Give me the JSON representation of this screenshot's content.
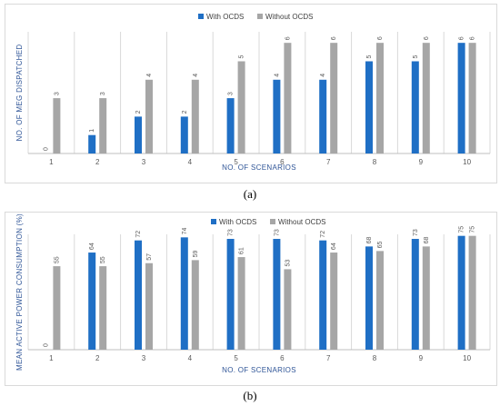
{
  "colors": {
    "with": "#1f6fc5",
    "without": "#a6a6a6",
    "grid": "#d9d9d9"
  },
  "captions": {
    "a": "(a)",
    "b": "(b)"
  },
  "chart_data": [
    {
      "type": "bar",
      "categories": [
        "1",
        "2",
        "3",
        "4",
        "5",
        "6",
        "7",
        "8",
        "9",
        "10"
      ],
      "series": [
        {
          "name": "With  OCDS",
          "values": [
            0,
            1,
            2,
            2,
            3,
            4,
            4,
            5,
            5,
            6
          ]
        },
        {
          "name": "Without OCDS",
          "values": [
            3,
            3,
            4,
            4,
            5,
            6,
            6,
            6,
            6,
            6
          ]
        }
      ],
      "xlabel": "NO. OF SCENARIOS",
      "ylabel": "NO. OF MEG  DISPATCHED",
      "ylim": [
        0,
        6.6
      ],
      "grid": "vertical separators",
      "legend": "top-center"
    },
    {
      "type": "bar",
      "categories": [
        "1",
        "2",
        "3",
        "4",
        "5",
        "6",
        "7",
        "8",
        "9",
        "10"
      ],
      "series": [
        {
          "name": "With  OCDS",
          "values": [
            0,
            64,
            72,
            74,
            73,
            73,
            72,
            68,
            73,
            75
          ]
        },
        {
          "name": "Without  OCDS",
          "values": [
            55,
            55,
            57,
            59,
            61,
            53,
            64,
            65,
            68,
            75
          ]
        }
      ],
      "xlabel": "NO. OF SCENARIOS",
      "ylabel": "MEAN ACTIVE POWER CONSUMPTION (%)",
      "ylim": [
        0,
        76
      ],
      "grid": "vertical separators",
      "legend": "top-center"
    }
  ]
}
